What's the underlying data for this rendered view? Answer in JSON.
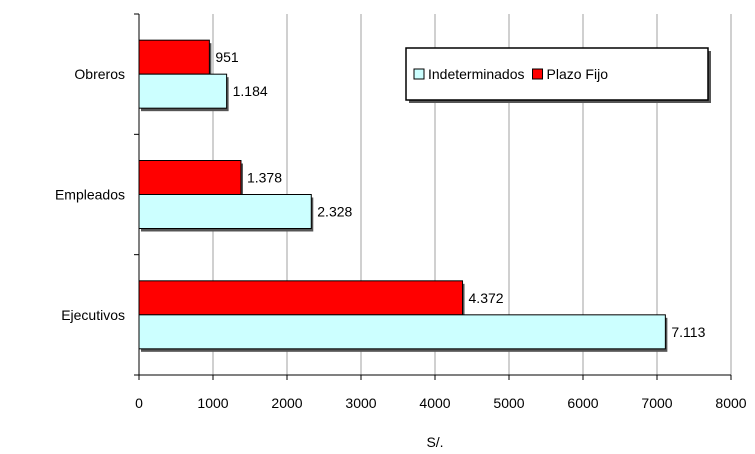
{
  "chart_data": {
    "type": "bar",
    "orientation": "horizontal",
    "categories": [
      "Obreros",
      "Empleados",
      "Ejecutivos"
    ],
    "series": [
      {
        "name": "Plazo Fijo",
        "values": [
          951,
          1378,
          4372
        ],
        "labels": [
          "951",
          "1.378",
          "4.372"
        ],
        "color": "#ff0000"
      },
      {
        "name": "Indeterminados",
        "values": [
          1184,
          2328,
          7113
        ],
        "labels": [
          "1.184",
          "2.328",
          "7.113"
        ],
        "color": "#ccffff"
      }
    ],
    "legend_order": [
      "Indeterminados",
      "Plazo Fijo"
    ],
    "legend_placement": "top-right",
    "xlabel": "S/.",
    "ylabel": "",
    "xlim": [
      0,
      8000
    ],
    "xticks": [
      0,
      1000,
      2000,
      3000,
      4000,
      5000,
      6000,
      7000,
      8000
    ],
    "grid": "vertical"
  }
}
